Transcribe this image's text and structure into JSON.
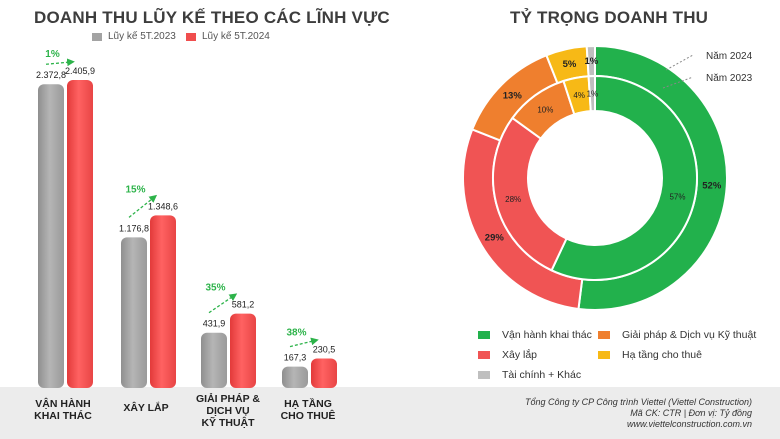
{
  "left_title": "DOANH THU LŨY KẾ THEO CÁC LĨNH VỰC",
  "right_title": "TỶ TRỌNG DOANH THU",
  "colors": {
    "s2023": "#a3a3a3",
    "s2024": "#f04e4e",
    "growth": "#2db34a"
  },
  "chart_data": [
    {
      "type": "bar",
      "title": "DOANH THU LŨY KẾ THEO CÁC LĨNH VỰC",
      "categories": [
        "VẬN HÀNH\nKHAI THÁC",
        "XÂY LẮP",
        "GIẢI PHÁP &\nDỊCH VỤ\nKỸ THUẬT",
        "HẠ TẦNG\nCHO THUÊ"
      ],
      "series": [
        {
          "name": "Lũy kế 5T.2023",
          "values": [
            2372.8,
            1176.8,
            431.9,
            167.3
          ],
          "labels": [
            "2.372,8",
            "1.176,8",
            "431,9",
            "167,3"
          ]
        },
        {
          "name": "Lũy kế 5T.2024",
          "values": [
            2405.9,
            1348.6,
            581.2,
            230.5
          ],
          "labels": [
            "2.405,9",
            "1.348,6",
            "581,2",
            "230,5"
          ]
        }
      ],
      "growth": [
        "1%",
        "15%",
        "35%",
        "38%"
      ],
      "ylim": [
        0,
        2600
      ]
    },
    {
      "type": "pie",
      "title": "TỶ TRỌNG DOANH THU",
      "categories": [
        "Vận hành khai thác",
        "Xây lắp",
        "Giải pháp & Dịch vụ Kỹ thuật",
        "Hạ tầng cho thuê",
        "Tài chính + Khác"
      ],
      "colors": [
        "#22b14c",
        "#f05454",
        "#ef7f2e",
        "#f7b916",
        "#bfbfbf"
      ],
      "rings": [
        {
          "name": "Năm 2024",
          "values": [
            52,
            29,
            13,
            5,
            1
          ],
          "labels": [
            "52%",
            "29%",
            "13%",
            "5%",
            "1%"
          ]
        },
        {
          "name": "Năm 2023",
          "values": [
            57,
            28,
            10,
            4,
            1
          ],
          "labels": [
            "57%",
            "28%",
            "10%",
            "4%",
            "1%"
          ]
        }
      ]
    }
  ],
  "footer": {
    "company": "Tổng Công ty CP Công trình Viettel (Viettel Construction)",
    "code": "Mã CK: CTR  |  Đơn vị: Tỷ đồng",
    "website": "www.viettelconstruction.com.vn"
  }
}
